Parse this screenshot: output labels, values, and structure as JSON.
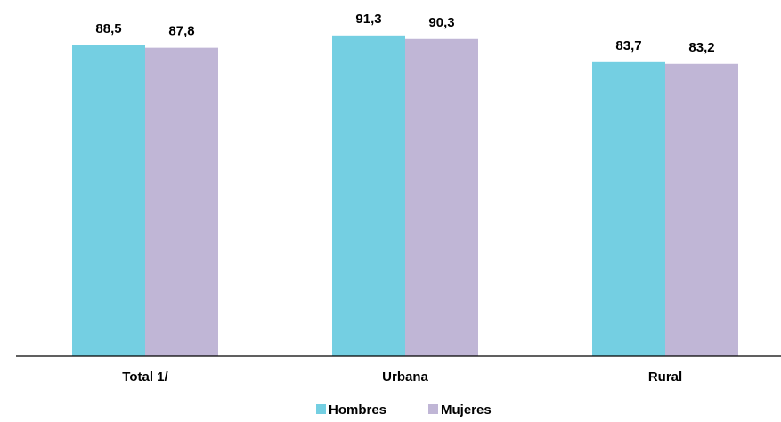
{
  "chart_data": {
    "type": "bar",
    "categories": [
      "Total 1/",
      "Urbana",
      "Rural"
    ],
    "series": [
      {
        "name": "Hombres",
        "values": [
          88.5,
          91.3,
          83.7
        ],
        "labels": [
          "88,5",
          "91,3",
          "83,7"
        ],
        "color": "#74cfe2"
      },
      {
        "name": "Mujeres",
        "values": [
          87.8,
          90.3,
          83.2
        ],
        "labels": [
          "87,8",
          "90,3",
          "83,2"
        ],
        "color": "#c0b6d6"
      }
    ],
    "title": "",
    "xlabel": "",
    "ylabel": "",
    "ylim": [
      0,
      100
    ],
    "grid": false,
    "legend_position": "bottom"
  }
}
